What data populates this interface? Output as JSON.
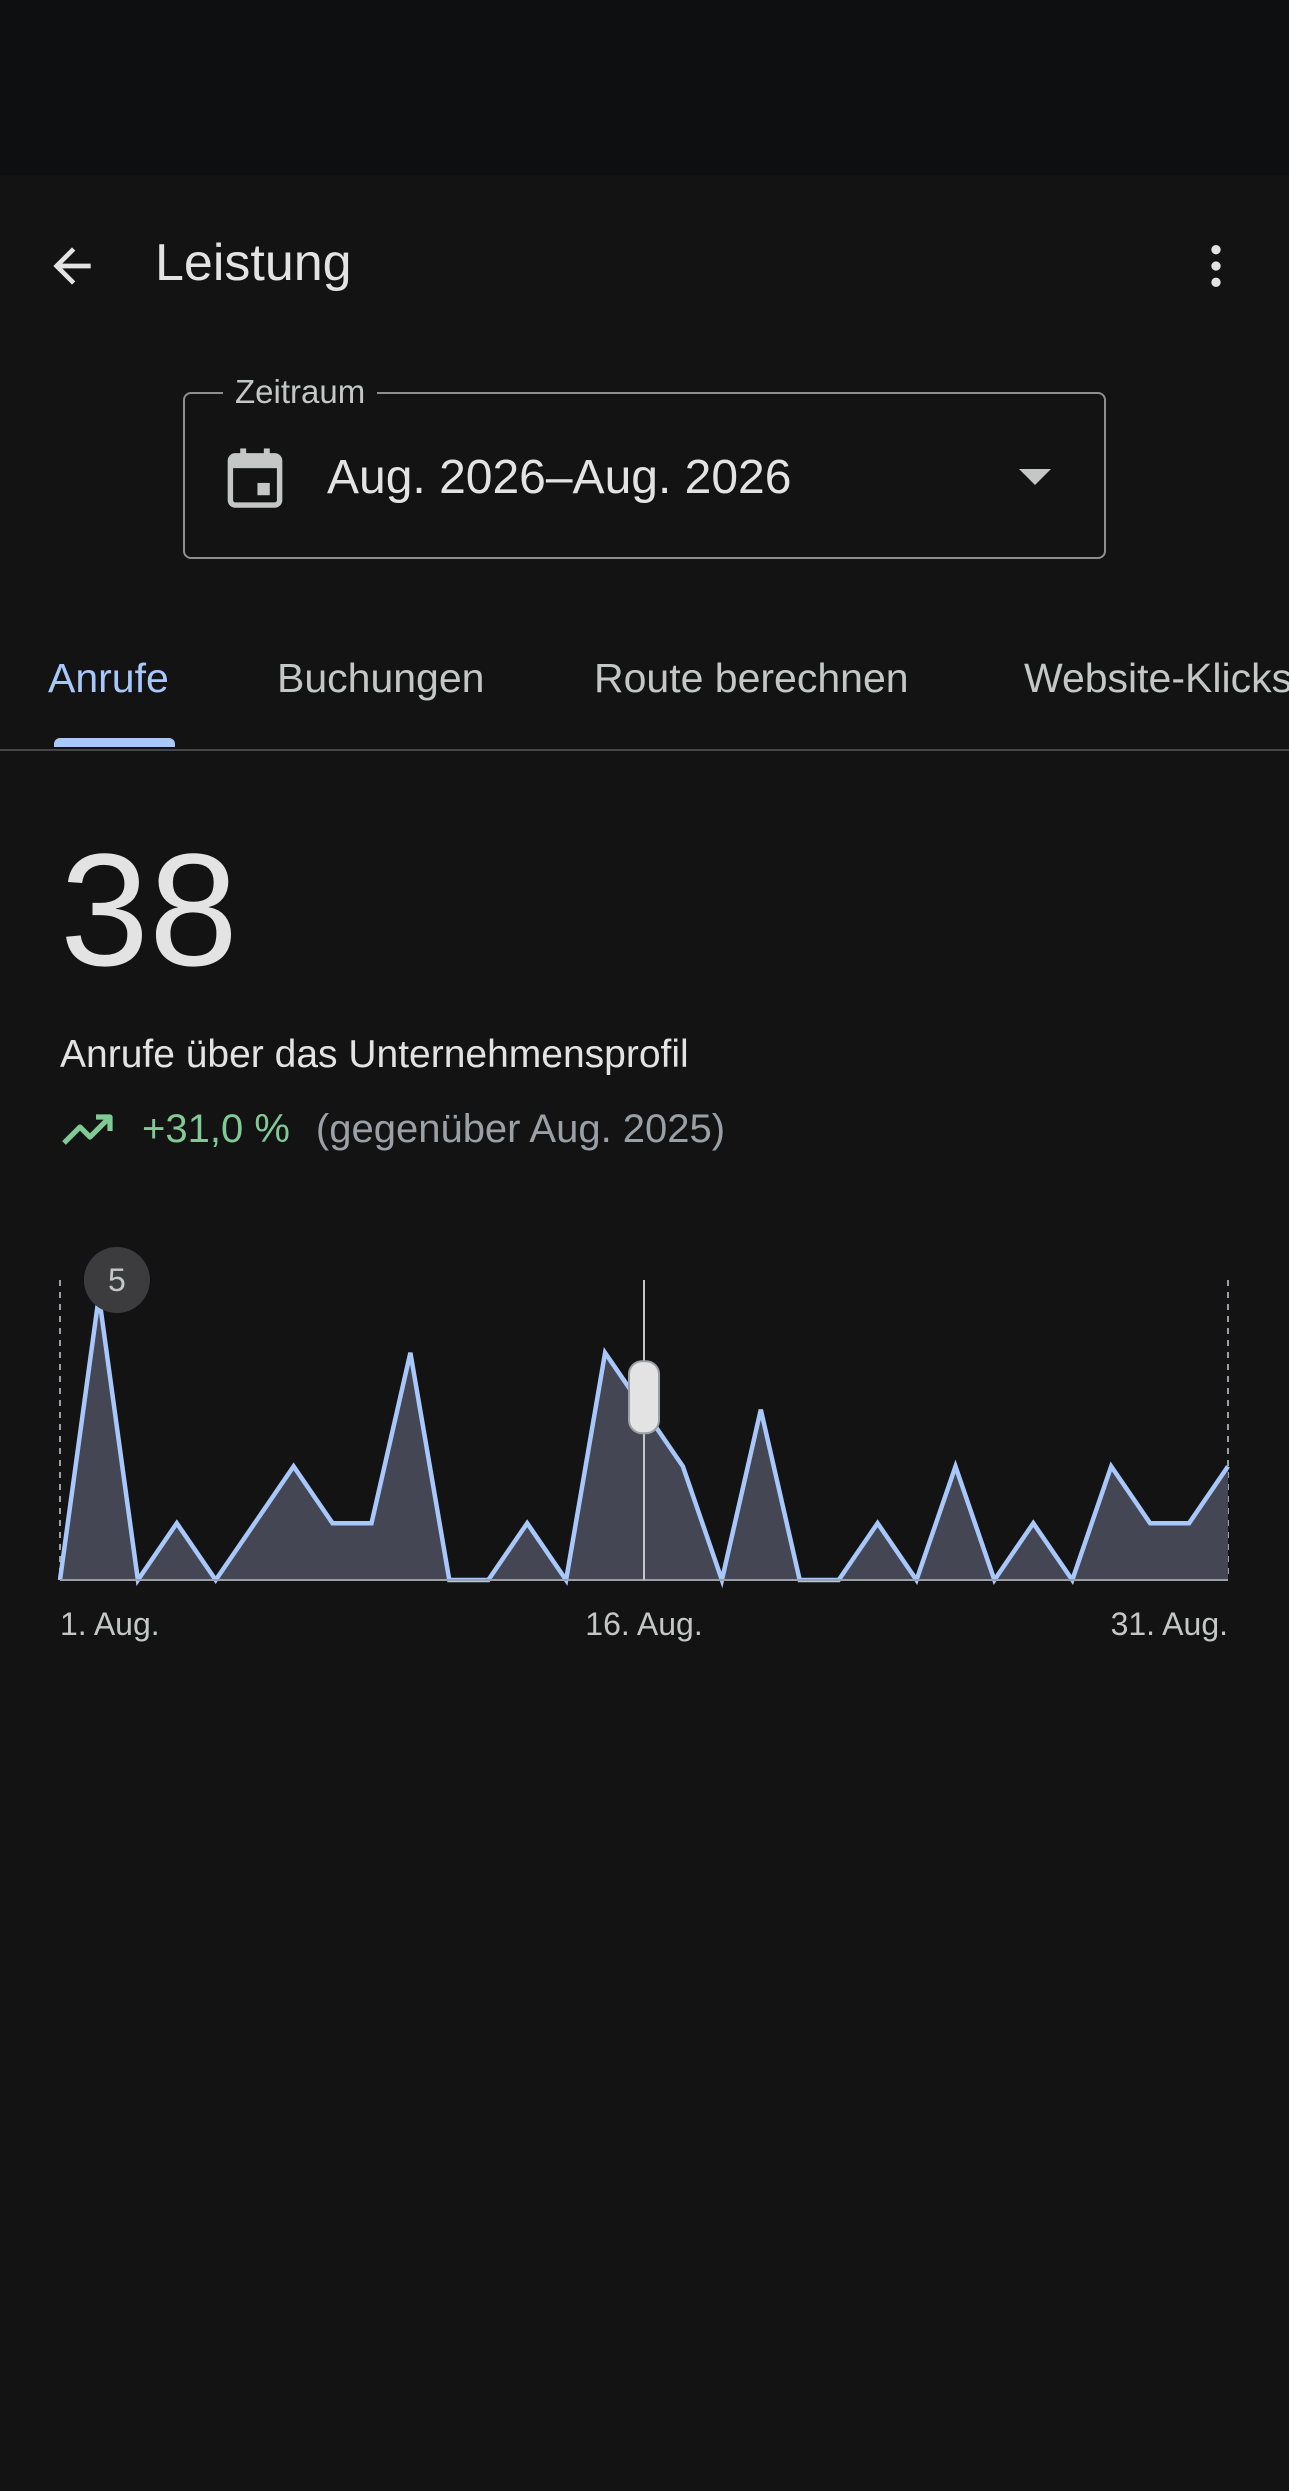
{
  "app_bar": {
    "title": "Leistung",
    "back_icon": "arrow-back-icon",
    "more_icon": "more-vert-icon"
  },
  "date_range": {
    "label": "Zeitraum",
    "value": "Aug. 2026–Aug. 2026",
    "icon": "calendar-icon"
  },
  "tabs": [
    {
      "label": "Anrufe",
      "active": true
    },
    {
      "label": "Buchungen",
      "active": false
    },
    {
      "label": "Route berechnen",
      "active": false
    },
    {
      "label": "Website-Klicks",
      "active": false
    }
  ],
  "metric": {
    "total": "38",
    "label": "Anrufe über das Unternehmensprofil",
    "change": "+31,0 %",
    "compare": "(gegenüber Aug. 2025)"
  },
  "colors": {
    "accent": "#a8c7fa",
    "positive": "#81c995",
    "background": "#131314"
  },
  "chart_data": {
    "type": "area",
    "x": [
      1,
      2,
      3,
      4,
      5,
      6,
      7,
      8,
      9,
      10,
      11,
      12,
      13,
      14,
      15,
      16,
      17,
      18,
      19,
      20,
      21,
      22,
      23,
      24,
      25,
      26,
      27,
      28,
      29,
      30,
      31
    ],
    "values": [
      0,
      5,
      0,
      1,
      0,
      1,
      2,
      1,
      1,
      4,
      0,
      0,
      1,
      0,
      4,
      3,
      2,
      0,
      3,
      0,
      0,
      1,
      0,
      2,
      0,
      1,
      0,
      2,
      1,
      1,
      2
    ],
    "ylim": [
      0,
      5
    ],
    "max_label": "5",
    "max_index": 1,
    "cursor_index": 15,
    "tick_labels": [
      {
        "index": 0,
        "label": "1. Aug."
      },
      {
        "index": 15,
        "label": "16. Aug."
      },
      {
        "index": 30,
        "label": "31. Aug."
      }
    ]
  }
}
